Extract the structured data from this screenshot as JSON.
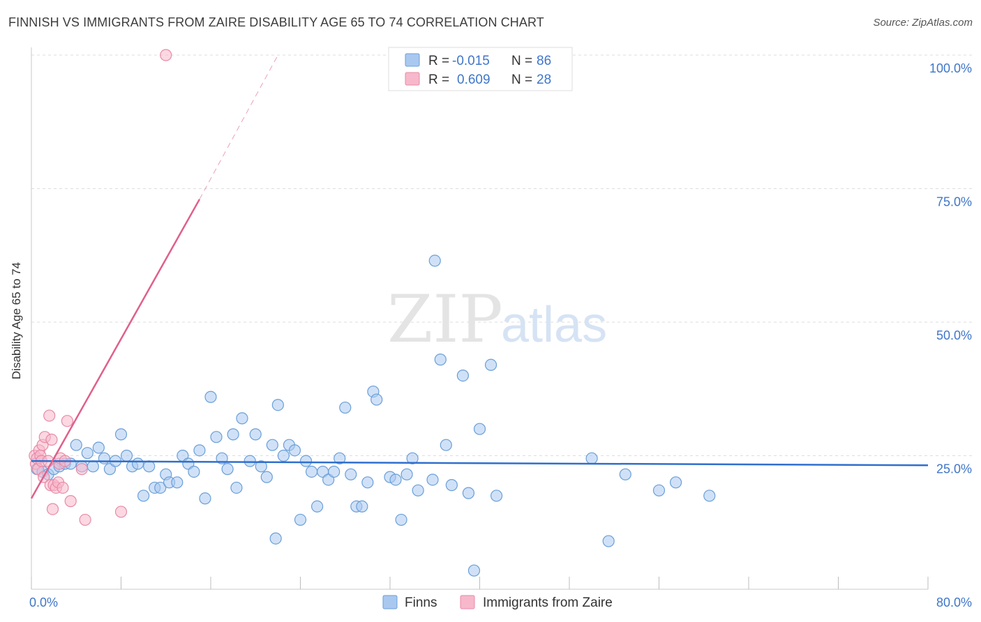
{
  "header": {
    "title": "FINNISH VS IMMIGRANTS FROM ZAIRE DISABILITY AGE 65 TO 74 CORRELATION CHART",
    "source": "Source: ZipAtlas.com"
  },
  "watermark": {
    "zip": "ZIP",
    "atlas": "atlas"
  },
  "colors": {
    "finns_fill": "#a9c8f0",
    "finns_stroke": "#6a9fd8",
    "finns_line": "#2f6fcd",
    "zaire_fill": "#f7b8cb",
    "zaire_stroke": "#e88aa7",
    "zaire_line": "#e0608a",
    "axis_text": "#3f76c9",
    "grid": "#dddddd"
  },
  "chart_data": {
    "type": "scatter",
    "title": "FINNISH VS IMMIGRANTS FROM ZAIRE DISABILITY AGE 65 TO 74 CORRELATION CHART",
    "xlabel": "",
    "ylabel": "Disability Age 65 to 74",
    "xlim": [
      0,
      80
    ],
    "ylim": [
      0,
      100
    ],
    "x_tick_labels": [
      "0.0%",
      "80.0%"
    ],
    "y_tick_values": [
      25,
      50,
      75,
      100
    ],
    "y_tick_labels": [
      "25.0%",
      "50.0%",
      "75.0%",
      "100.0%"
    ],
    "legend": {
      "position": "top-center",
      "entries": [
        {
          "r_label": "R =",
          "r_value": "-0.015",
          "n_label": "N =",
          "n_value": "86"
        },
        {
          "r_label": "R =",
          "r_value": "0.609",
          "n_label": "N =",
          "n_value": "28"
        }
      ]
    },
    "bottom_legend": [
      "Finns",
      "Immigrants from Zaire"
    ],
    "series": [
      {
        "name": "Finns",
        "trend": {
          "x": [
            0,
            80
          ],
          "y": [
            24.0,
            23.2
          ]
        },
        "points": [
          [
            0.5,
            22.5
          ],
          [
            1.0,
            22.0
          ],
          [
            1.5,
            21.5
          ],
          [
            2.0,
            22.5
          ],
          [
            2.5,
            23.0
          ],
          [
            3.0,
            23.5
          ],
          [
            3.5,
            23.5
          ],
          [
            4.0,
            27.0
          ],
          [
            4.5,
            23.0
          ],
          [
            5.0,
            25.5
          ],
          [
            5.5,
            23.0
          ],
          [
            6.0,
            26.5
          ],
          [
            6.5,
            24.5
          ],
          [
            7.0,
            22.5
          ],
          [
            7.5,
            24.0
          ],
          [
            8.0,
            29.0
          ],
          [
            8.5,
            25.0
          ],
          [
            9.0,
            23.0
          ],
          [
            9.5,
            23.5
          ],
          [
            10.0,
            17.5
          ],
          [
            10.5,
            23.0
          ],
          [
            11.0,
            19.0
          ],
          [
            11.5,
            19.0
          ],
          [
            12.0,
            21.5
          ],
          [
            12.3,
            20.0
          ],
          [
            13.0,
            20.0
          ],
          [
            13.5,
            25.0
          ],
          [
            14.0,
            23.5
          ],
          [
            14.5,
            22.0
          ],
          [
            15.0,
            26.0
          ],
          [
            15.5,
            17.0
          ],
          [
            16.0,
            36.0
          ],
          [
            16.5,
            28.5
          ],
          [
            17.0,
            24.5
          ],
          [
            17.5,
            22.5
          ],
          [
            18.0,
            29.0
          ],
          [
            18.3,
            19.0
          ],
          [
            18.8,
            32.0
          ],
          [
            19.5,
            24.0
          ],
          [
            20.0,
            29.0
          ],
          [
            20.5,
            23.0
          ],
          [
            21.0,
            21.0
          ],
          [
            21.5,
            27.0
          ],
          [
            22.0,
            34.5
          ],
          [
            22.5,
            25.0
          ],
          [
            23.0,
            27.0
          ],
          [
            23.5,
            26.0
          ],
          [
            24.0,
            13.0
          ],
          [
            24.5,
            24.0
          ],
          [
            25.0,
            22.0
          ],
          [
            25.5,
            15.5
          ],
          [
            26.0,
            22.0
          ],
          [
            26.5,
            20.5
          ],
          [
            27.0,
            22.0
          ],
          [
            27.5,
            24.5
          ],
          [
            28.0,
            34.0
          ],
          [
            28.5,
            21.5
          ],
          [
            29.0,
            15.5
          ],
          [
            29.5,
            15.5
          ],
          [
            30.0,
            20.0
          ],
          [
            30.5,
            37.0
          ],
          [
            30.8,
            35.5
          ],
          [
            32.0,
            21.0
          ],
          [
            32.5,
            20.5
          ],
          [
            33.0,
            13.0
          ],
          [
            33.5,
            21.5
          ],
          [
            34.0,
            24.5
          ],
          [
            34.5,
            18.5
          ],
          [
            36.0,
            61.5
          ],
          [
            36.5,
            43.0
          ],
          [
            37.0,
            27.0
          ],
          [
            37.5,
            19.5
          ],
          [
            38.5,
            40.0
          ],
          [
            39.0,
            18.0
          ],
          [
            40.0,
            30.0
          ],
          [
            41.0,
            42.0
          ],
          [
            41.5,
            17.5
          ],
          [
            21.8,
            9.5
          ],
          [
            35.8,
            20.5
          ],
          [
            39.5,
            3.5
          ],
          [
            50.0,
            24.5
          ],
          [
            51.5,
            9.0
          ],
          [
            53.0,
            21.5
          ],
          [
            56.0,
            18.5
          ],
          [
            57.5,
            20.0
          ],
          [
            60.5,
            17.5
          ]
        ]
      },
      {
        "name": "Immigrants from Zaire",
        "trend": {
          "x": [
            0,
            15
          ],
          "y": [
            17.0,
            73.0
          ],
          "dash_to": {
            "x": 22,
            "y": 100
          }
        },
        "points": [
          [
            0.3,
            25.0
          ],
          [
            0.4,
            23.5
          ],
          [
            0.5,
            24.5
          ],
          [
            0.6,
            22.5
          ],
          [
            0.7,
            26.0
          ],
          [
            0.8,
            25.0
          ],
          [
            0.9,
            24.0
          ],
          [
            1.0,
            27.0
          ],
          [
            1.1,
            21.0
          ],
          [
            1.2,
            28.5
          ],
          [
            1.5,
            24.0
          ],
          [
            1.6,
            32.5
          ],
          [
            1.7,
            19.5
          ],
          [
            1.8,
            28.0
          ],
          [
            1.9,
            15.0
          ],
          [
            2.0,
            19.5
          ],
          [
            2.2,
            19.0
          ],
          [
            2.4,
            20.0
          ],
          [
            2.5,
            23.5
          ],
          [
            2.6,
            24.5
          ],
          [
            2.8,
            19.0
          ],
          [
            3.0,
            24.0
          ],
          [
            3.2,
            31.5
          ],
          [
            3.5,
            16.5
          ],
          [
            4.5,
            22.5
          ],
          [
            4.8,
            13.0
          ],
          [
            8.0,
            14.5
          ],
          [
            12.0,
            100.0
          ]
        ]
      }
    ]
  }
}
